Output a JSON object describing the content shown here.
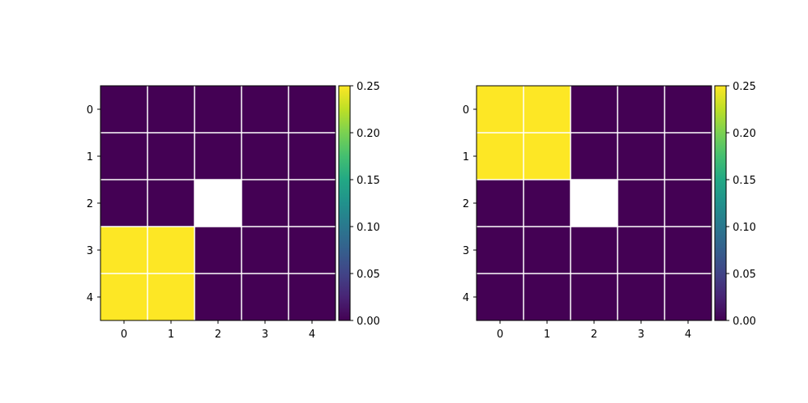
{
  "chart_data": [
    {
      "type": "heatmap",
      "title": "",
      "xlabel": "",
      "ylabel": "",
      "x_ticks": [
        "0",
        "1",
        "2",
        "3",
        "4"
      ],
      "y_ticks": [
        "0",
        "1",
        "2",
        "3",
        "4"
      ],
      "values": [
        [
          0,
          0,
          0,
          0,
          0
        ],
        [
          0,
          0,
          0,
          0,
          0
        ],
        [
          0,
          0,
          null,
          0,
          0
        ],
        [
          0.25,
          0.25,
          0,
          0,
          0
        ],
        [
          0.25,
          0.25,
          0,
          0,
          0
        ]
      ],
      "colormap": "viridis",
      "vmin": 0,
      "vmax": 0.25,
      "colorbar_ticks": [
        "0.00",
        "0.05",
        "0.10",
        "0.15",
        "0.20",
        "0.25"
      ],
      "grid": true,
      "missing_color": "#ffffff"
    },
    {
      "type": "heatmap",
      "title": "",
      "xlabel": "",
      "ylabel": "",
      "x_ticks": [
        "0",
        "1",
        "2",
        "3",
        "4"
      ],
      "y_ticks": [
        "0",
        "1",
        "2",
        "3",
        "4"
      ],
      "values": [
        [
          0.25,
          0.25,
          0,
          0,
          0
        ],
        [
          0.25,
          0.25,
          0,
          0,
          0
        ],
        [
          0,
          0,
          null,
          0,
          0
        ],
        [
          0,
          0,
          0,
          0,
          0
        ],
        [
          0,
          0,
          0,
          0,
          0
        ]
      ],
      "colormap": "viridis",
      "vmin": 0,
      "vmax": 0.25,
      "colorbar_ticks": [
        "0.00",
        "0.05",
        "0.10",
        "0.15",
        "0.20",
        "0.25"
      ],
      "grid": true,
      "missing_color": "#ffffff"
    }
  ]
}
